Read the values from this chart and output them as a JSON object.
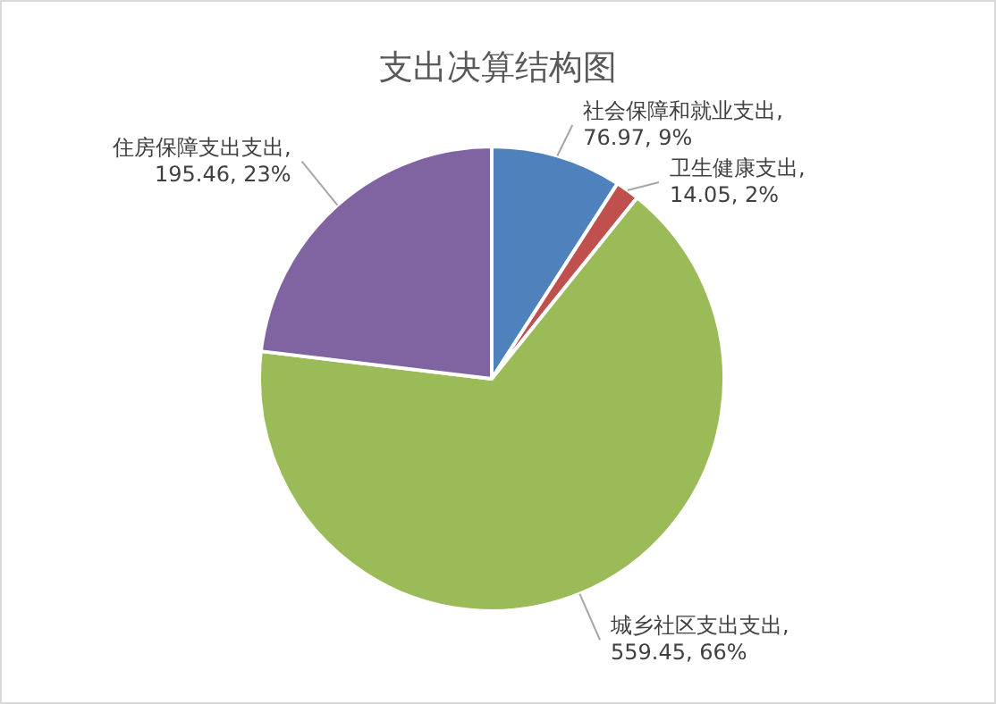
{
  "chart_data": {
    "type": "pie",
    "title": "支出决算结构图",
    "categories": [
      "社会保障和就业支出",
      "卫生健康支出",
      "城乡社区支出支出",
      "住房保障支出支出"
    ],
    "values": [
      76.97,
      14.05,
      559.45,
      195.46
    ],
    "value_labels": [
      ", 76.97, 9%",
      ", 14.05, 2%",
      ", 559.45, 66%",
      ", 195.46, 23%"
    ],
    "colors": [
      "#4f81bd",
      "#c0504d",
      "#9bbb59",
      "#8064a2"
    ],
    "legend": false
  }
}
